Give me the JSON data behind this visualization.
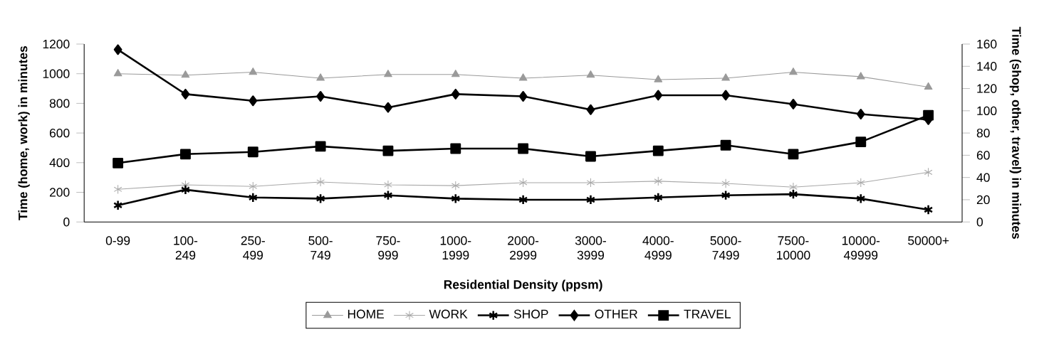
{
  "chart_data": {
    "type": "line",
    "xlabel": "Residential Density (ppsm)",
    "ylabel": "Time (home, work) in minutes",
    "y2label": "Time (shop, other, travel) in minutes",
    "categories": [
      "0-99",
      "100-249",
      "250-499",
      "500-749",
      "750-999",
      "1000-1999",
      "2000-2999",
      "3000-3999",
      "4000-4999",
      "5000-7499",
      "7500-10000",
      "10000-49999",
      "50000+"
    ],
    "ylim": [
      0,
      1200
    ],
    "yticks": [
      0,
      200,
      400,
      600,
      800,
      1000,
      1200
    ],
    "y2lim": [
      0,
      160
    ],
    "y2ticks": [
      0,
      20,
      40,
      60,
      80,
      100,
      120,
      140,
      160
    ],
    "grid": false,
    "legend": "bottom",
    "line_style": "solid",
    "series": [
      {
        "name": "HOME",
        "color": "#9a9a9a",
        "marker": "triangle",
        "values": [
          1000,
          990,
          1010,
          970,
          995,
          995,
          970,
          990,
          960,
          970,
          1010,
          980,
          910
        ]
      },
      {
        "name": "WORK",
        "color": "#a8a8a8",
        "marker": "cross",
        "values": [
          220,
          250,
          240,
          270,
          250,
          245,
          265,
          265,
          275,
          260,
          235,
          265,
          335
        ]
      },
      {
        "name": "SHOP",
        "color": "#000000",
        "marker": "cross",
        "axis": "y2",
        "values": [
          15,
          29,
          22,
          21,
          24,
          21,
          20,
          20,
          22,
          24,
          25,
          21,
          11
        ]
      },
      {
        "name": "OTHER",
        "color": "#000000",
        "marker": "diamond",
        "axis": "y2",
        "values": [
          155,
          115,
          109,
          113,
          103,
          115,
          113,
          101,
          114,
          114,
          106,
          97,
          92
        ]
      },
      {
        "name": "TRAVEL",
        "color": "#000000",
        "marker": "square",
        "axis": "y2",
        "values": [
          53,
          61,
          63,
          68,
          64,
          66,
          66,
          59,
          64,
          69,
          61,
          72,
          96
        ]
      }
    ]
  }
}
